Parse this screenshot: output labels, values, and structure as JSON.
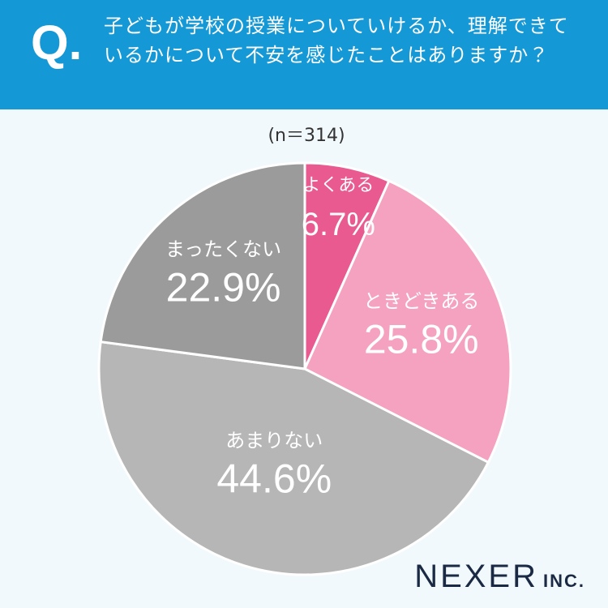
{
  "question_label": "Q.",
  "chart_data": {
    "type": "pie",
    "title": "子どもが学校の授業についていけるか、理解できているかについて不安を感じたことはありますか？",
    "subtitle": "(n＝314)",
    "categories": [
      "よくある",
      "ときどきある",
      "あまりない",
      "まったくない"
    ],
    "values": [
      6.7,
      25.8,
      44.6,
      22.9
    ],
    "value_labels": [
      "6.7%",
      "25.8%",
      "44.6%",
      "22.9%"
    ],
    "colors": [
      "#e95a90",
      "#f4a2c0",
      "#b6b6b6",
      "#9b9b9b"
    ]
  },
  "brand": {
    "name": "NEXER",
    "suffix": "INC."
  }
}
